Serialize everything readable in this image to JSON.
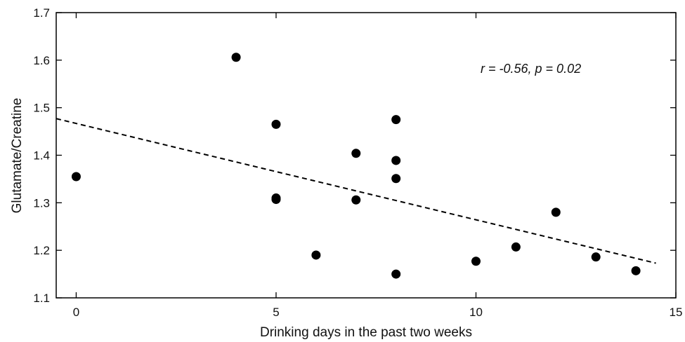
{
  "chart_data": {
    "type": "scatter",
    "xlabel": "Drinking days in the past two weeks",
    "ylabel": "Glutamate/Creatine",
    "xlim": [
      -0.5,
      15
    ],
    "ylim": [
      1.1,
      1.7
    ],
    "xticks": [
      0,
      5,
      10,
      15
    ],
    "xtick_labels": [
      "0",
      "5",
      "10",
      "15"
    ],
    "yticks": [
      1.1,
      1.2,
      1.3,
      1.4,
      1.5,
      1.6,
      1.7
    ],
    "ytick_labels": [
      "1.1",
      "1.2",
      "1.3",
      "1.4",
      "1.5",
      "1.6",
      "1.7"
    ],
    "grid": false,
    "annotation": "r = -0.56, p = 0.02",
    "points": [
      {
        "x": 0,
        "y": 1.355
      },
      {
        "x": 4,
        "y": 1.606
      },
      {
        "x": 5,
        "y": 1.465
      },
      {
        "x": 5,
        "y": 1.31
      },
      {
        "x": 5,
        "y": 1.307
      },
      {
        "x": 6,
        "y": 1.19
      },
      {
        "x": 7,
        "y": 1.404
      },
      {
        "x": 7,
        "y": 1.306
      },
      {
        "x": 8,
        "y": 1.475
      },
      {
        "x": 8,
        "y": 1.389
      },
      {
        "x": 8,
        "y": 1.351
      },
      {
        "x": 8,
        "y": 1.15
      },
      {
        "x": 10,
        "y": 1.177
      },
      {
        "x": 11,
        "y": 1.207
      },
      {
        "x": 12,
        "y": 1.28
      },
      {
        "x": 13,
        "y": 1.186
      },
      {
        "x": 14,
        "y": 1.157
      }
    ],
    "trendline": {
      "style": "dashed",
      "start": {
        "x": -0.5,
        "y": 1.477
      },
      "end": {
        "x": 14.5,
        "y": 1.173
      }
    }
  }
}
